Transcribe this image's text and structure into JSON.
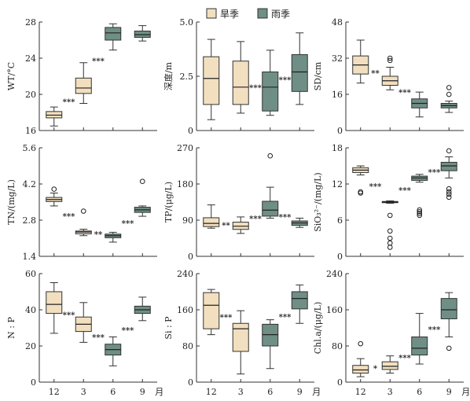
{
  "legend": [
    {
      "label": "旱季",
      "color": "#f2dfbf"
    },
    {
      "label": "雨季",
      "color": "#6f8e86"
    }
  ],
  "month_unit": "月",
  "chart_data": [
    {
      "type": "box",
      "ylabel": "WT/°C",
      "ylim": [
        16,
        28
      ],
      "yticks": [
        "16",
        "20",
        "24",
        "28"
      ],
      "categories": [
        "12",
        "3",
        "6",
        "9"
      ],
      "season": [
        "dry",
        "dry",
        "wet",
        "wet"
      ],
      "boxes": [
        {
          "min": 16.5,
          "q1": 17.4,
          "median": 17.7,
          "q3": 18.1,
          "max": 18.6,
          "outliers": []
        },
        {
          "min": 19.0,
          "q1": 20.1,
          "median": 20.7,
          "q3": 21.8,
          "max": 23.5,
          "outliers": []
        },
        {
          "min": 24.9,
          "q1": 26.0,
          "median": 26.8,
          "q3": 27.4,
          "max": 27.8,
          "outliers": []
        },
        {
          "min": 25.9,
          "q1": 26.3,
          "median": 26.6,
          "q3": 27.0,
          "max": 27.6,
          "outliers": []
        }
      ],
      "sig": [
        "***",
        "***",
        ""
      ]
    },
    {
      "type": "box",
      "ylabel": "深度/m",
      "ylim": [
        0,
        5
      ],
      "yticks": [
        "0",
        "2.5",
        "5.0"
      ],
      "categories": [
        "12",
        "3",
        "6",
        "9"
      ],
      "season": [
        "dry",
        "dry",
        "wet",
        "wet"
      ],
      "boxes": [
        {
          "min": 0.5,
          "q1": 1.2,
          "median": 2.4,
          "q3": 3.4,
          "max": 4.2,
          "outliers": []
        },
        {
          "min": 0.8,
          "q1": 1.2,
          "median": 2.0,
          "q3": 3.2,
          "max": 4.1,
          "outliers": []
        },
        {
          "min": 0.7,
          "q1": 0.9,
          "median": 2.0,
          "q3": 2.7,
          "max": 3.7,
          "outliers": []
        },
        {
          "min": 1.2,
          "q1": 1.8,
          "median": 2.7,
          "q3": 3.5,
          "max": 4.5,
          "outliers": []
        }
      ],
      "sig": [
        "",
        "***",
        "***"
      ]
    },
    {
      "type": "box",
      "ylabel": "SD/cm",
      "ylim": [
        0,
        48
      ],
      "yticks": [
        "0",
        "16",
        "32",
        "48"
      ],
      "categories": [
        "12",
        "3",
        "6",
        "9"
      ],
      "season": [
        "dry",
        "dry",
        "wet",
        "wet"
      ],
      "boxes": [
        {
          "min": 21,
          "q1": 25,
          "median": 29,
          "q3": 33,
          "max": 40,
          "outliers": []
        },
        {
          "min": 18,
          "q1": 20,
          "median": 22,
          "q3": 24,
          "max": 28,
          "outliers": [
            31,
            32
          ]
        },
        {
          "min": 6,
          "q1": 10,
          "median": 12,
          "q3": 14,
          "max": 17,
          "outliers": []
        },
        {
          "min": 8,
          "q1": 10,
          "median": 11,
          "q3": 12,
          "max": 13,
          "outliers": [
            16,
            19
          ]
        }
      ],
      "sig": [
        "**",
        "***",
        ""
      ]
    },
    {
      "type": "box",
      "ylabel": "TN/(mg/L)",
      "ylim": [
        1.4,
        5.6
      ],
      "yticks": [
        "1.4",
        "2.8",
        "4.2",
        "5.6"
      ],
      "categories": [
        "12",
        "3",
        "6",
        "9"
      ],
      "season": [
        "dry",
        "dry",
        "wet",
        "wet"
      ],
      "boxes": [
        {
          "min": 3.35,
          "q1": 3.52,
          "median": 3.6,
          "q3": 3.68,
          "max": 3.85,
          "outliers": [
            4.0
          ]
        },
        {
          "min": 2.2,
          "q1": 2.27,
          "median": 2.34,
          "q3": 2.38,
          "max": 2.45,
          "outliers": [
            3.15
          ]
        },
        {
          "min": 1.95,
          "q1": 2.12,
          "median": 2.2,
          "q3": 2.26,
          "max": 2.33,
          "outliers": []
        },
        {
          "min": 2.95,
          "q1": 3.1,
          "median": 3.2,
          "q3": 3.3,
          "max": 3.35,
          "outliers": [
            4.3
          ]
        }
      ],
      "sig": [
        "***",
        "**",
        "***"
      ]
    },
    {
      "type": "box",
      "ylabel": "TP/(μg/L)",
      "ylim": [
        0,
        270
      ],
      "yticks": [
        "0",
        "90",
        "180",
        "270"
      ],
      "categories": [
        "12",
        "3",
        "6",
        "9"
      ],
      "season": [
        "dry",
        "dry",
        "wet",
        "wet"
      ],
      "boxes": [
        {
          "min": 70,
          "q1": 74,
          "median": 82,
          "q3": 96,
          "max": 128,
          "outliers": []
        },
        {
          "min": 57,
          "q1": 67,
          "median": 75,
          "q3": 85,
          "max": 98,
          "outliers": []
        },
        {
          "min": 95,
          "q1": 100,
          "median": 115,
          "q3": 137,
          "max": 172,
          "outliers": [
            250
          ]
        },
        {
          "min": 72,
          "q1": 77,
          "median": 83,
          "q3": 88,
          "max": 95,
          "outliers": []
        }
      ],
      "sig": [
        "**",
        "***",
        "***"
      ]
    },
    {
      "type": "box",
      "ylabel": "SiO₃²⁻/(mg/L)",
      "ylim": [
        0,
        18
      ],
      "yticks": [
        "0",
        "6",
        "12",
        "18"
      ],
      "categories": [
        "12",
        "3",
        "6",
        "9"
      ],
      "season": [
        "dry",
        "dry",
        "wet",
        "wet"
      ],
      "boxes": [
        {
          "min": 13.5,
          "q1": 13.9,
          "median": 14.3,
          "q3": 14.7,
          "max": 15.0,
          "outliers": [
            10.5,
            10.7
          ]
        },
        {
          "min": 8.8,
          "q1": 8.9,
          "median": 9.0,
          "q3": 9.1,
          "max": 9.2,
          "outliers": [
            1.5,
            2.2,
            3.0,
            4.2,
            6.8
          ]
        },
        {
          "min": 12.3,
          "q1": 12.6,
          "median": 13.0,
          "q3": 13.3,
          "max": 13.6,
          "outliers": [
            6.8,
            7.1,
            7.4,
            7.7
          ]
        },
        {
          "min": 13.0,
          "q1": 14.2,
          "median": 15.0,
          "q3": 15.6,
          "max": 16.5,
          "outliers": [
            9.8,
            10.3,
            10.7,
            11.2,
            17.5
          ]
        }
      ],
      "sig": [
        "***",
        "***",
        "***"
      ]
    },
    {
      "type": "box",
      "ylabel": "N : P",
      "ylim": [
        0,
        60
      ],
      "yticks": [
        "0",
        "20",
        "40",
        "60"
      ],
      "categories": [
        "12",
        "3",
        "6",
        "9"
      ],
      "season": [
        "dry",
        "dry",
        "wet",
        "wet"
      ],
      "boxes": [
        {
          "min": 27,
          "q1": 38,
          "median": 43,
          "q3": 50,
          "max": 55,
          "outliers": []
        },
        {
          "min": 22,
          "q1": 28,
          "median": 32,
          "q3": 36,
          "max": 44,
          "outliers": []
        },
        {
          "min": 9,
          "q1": 15,
          "median": 18,
          "q3": 21,
          "max": 25,
          "outliers": []
        },
        {
          "min": 34,
          "q1": 38,
          "median": 40,
          "q3": 42,
          "max": 47,
          "outliers": []
        }
      ],
      "sig": [
        "***",
        "***",
        "***"
      ]
    },
    {
      "type": "box",
      "ylabel": "Si : P",
      "ylim": [
        0,
        240
      ],
      "yticks": [
        "0",
        "80",
        "160",
        "240"
      ],
      "categories": [
        "12",
        "3",
        "6",
        "9"
      ],
      "season": [
        "dry",
        "dry",
        "wet",
        "wet"
      ],
      "boxes": [
        {
          "min": 105,
          "q1": 118,
          "median": 170,
          "q3": 198,
          "max": 205,
          "outliers": []
        },
        {
          "min": 18,
          "q1": 68,
          "median": 118,
          "q3": 130,
          "max": 158,
          "outliers": []
        },
        {
          "min": 30,
          "q1": 80,
          "median": 105,
          "q3": 128,
          "max": 138,
          "outliers": []
        },
        {
          "min": 130,
          "q1": 162,
          "median": 185,
          "q3": 200,
          "max": 215,
          "outliers": []
        }
      ],
      "sig": [
        "***",
        "",
        "***"
      ]
    },
    {
      "type": "box",
      "ylabel": "Chl.a/(μg/L)",
      "ylim": [
        0,
        240
      ],
      "yticks": [
        "0",
        "80",
        "160",
        "240"
      ],
      "categories": [
        "12",
        "3",
        "6",
        "9"
      ],
      "season": [
        "dry",
        "dry",
        "wet",
        "wet"
      ],
      "boxes": [
        {
          "min": 12,
          "q1": 20,
          "median": 27,
          "q3": 37,
          "max": 52,
          "outliers": [
            85
          ]
        },
        {
          "min": 20,
          "q1": 28,
          "median": 35,
          "q3": 45,
          "max": 58,
          "outliers": []
        },
        {
          "min": 40,
          "q1": 60,
          "median": 75,
          "q3": 100,
          "max": 152,
          "outliers": []
        },
        {
          "min": 100,
          "q1": 140,
          "median": 160,
          "q3": 185,
          "max": 198,
          "outliers": [
            75
          ]
        }
      ],
      "sig": [
        "*",
        "***",
        "***"
      ]
    }
  ]
}
